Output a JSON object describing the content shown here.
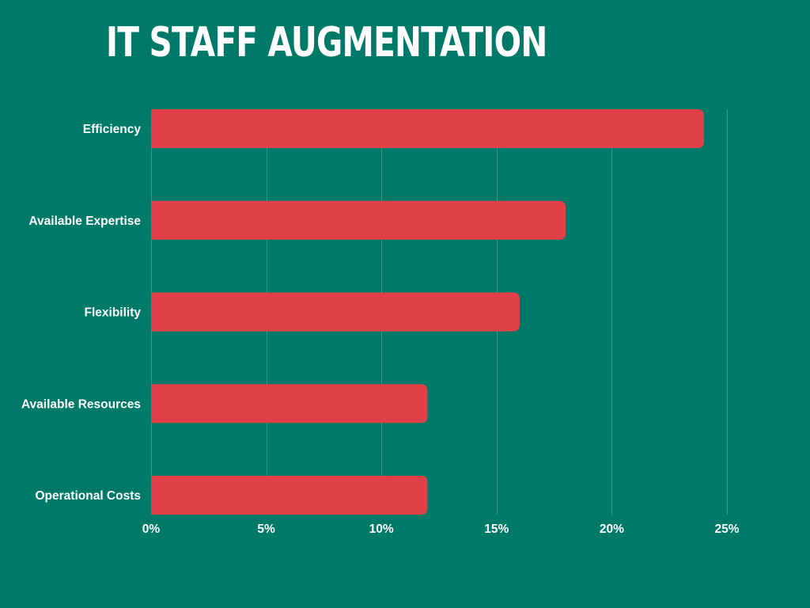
{
  "colors": {
    "background": "#007a68",
    "bar": "#e14049",
    "text": "#ffffff"
  },
  "chart_data": {
    "type": "bar",
    "orientation": "horizontal",
    "title": "IT STAFF AUGMENTATION",
    "xlabel": "",
    "ylabel": "",
    "categories": [
      "Efficiency",
      "Available Expertise",
      "Flexibility",
      "Available Resources",
      "Operational Costs"
    ],
    "values": [
      24,
      18,
      16,
      12,
      12
    ],
    "unit": "%",
    "xlim": [
      0,
      25
    ],
    "xticks": [
      0,
      5,
      10,
      15,
      20,
      25
    ],
    "xtick_labels": [
      "0%",
      "5%",
      "10%",
      "15%",
      "20%",
      "25%"
    ],
    "grid": "vertical",
    "legend": "none"
  }
}
